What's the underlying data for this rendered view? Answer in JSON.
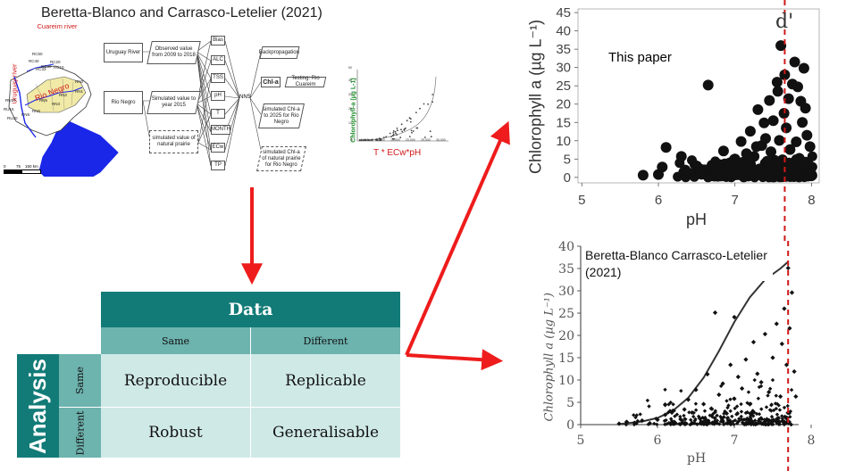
{
  "top_title": "Beretta-Blanco and Carrasco-Letelier (2021)",
  "map": {
    "cuareim_label": "Cuareim river",
    "uruguay_label": "Uruguay river",
    "rionegro_label": "Rio Negro",
    "stations": [
      "RC50",
      "RC40",
      "RC30",
      "RC20",
      "RC10",
      "RC33",
      "RN0",
      "RN1",
      "RN2",
      "RN3",
      "RN5",
      "RN6",
      "RN8",
      "RU10",
      "RU15",
      "RU20"
    ],
    "scale_labels": [
      "0",
      "75",
      "150 km"
    ]
  },
  "flow": {
    "uruguay_river": "Uruguay River",
    "rio_negro": "Rio Negro",
    "observed": "Observed value from 2009 to 2018",
    "simulated_2015": "Simulated value to year 2015",
    "simulated_prairie": "simulated value of natural prairie",
    "vars": [
      "Bias",
      "ALC",
      "TSS",
      "pH",
      "T",
      "MONTH",
      "ECw",
      "TP"
    ],
    "nns": "NNS",
    "backprop": "Backpropagation",
    "chla": "Chl-a",
    "testing": "Testing: Rio Cuareim",
    "sim_2025": "simulated Chl-a to 2025 for Rio Negro",
    "sim_prairie": "simulated Chl-a of natural prairie for Rio Negro"
  },
  "mini_plot": {
    "ylabel": "Chlorophyll-a (µg L-1)",
    "yticks": [
      "0",
      "10",
      "20",
      "30",
      "40",
      "50"
    ],
    "xticks": [
      "0",
      "5,000",
      "10,000",
      "15,000",
      "20,000",
      "25,000",
      "30,000"
    ],
    "formula": "T * ECw*pH"
  },
  "matrix": {
    "data_header": "Data",
    "analysis_label": "Analysis",
    "col_same": "Same",
    "col_different": "Different",
    "row_same": "Same",
    "row_different": "Different",
    "reproducible": "Reproducible",
    "replicable": "Replicable",
    "robust": "Robust",
    "generalisable": "Generalisable"
  },
  "plot_this": {
    "annotation": "This paper",
    "ylabel": "Chlorophyll a (µg L⁻¹)",
    "xlabel": "pH",
    "marker": "d'",
    "yticks": [
      "0",
      "5",
      "10",
      "15",
      "20",
      "25",
      "30",
      "35",
      "40",
      "45"
    ],
    "xticks": [
      "5",
      "6",
      "7",
      "8"
    ]
  },
  "plot_beretta": {
    "annotation": "Beretta-Blanco Carrasco-Letelier (2021)",
    "ylabel": "Chlorophyll a (µg L⁻¹)",
    "xlabel": "pH",
    "yticks": [
      "0",
      "5",
      "10",
      "15",
      "20",
      "25",
      "30",
      "35",
      "40"
    ],
    "xticks": [
      "5",
      "6",
      "7",
      "8"
    ]
  },
  "colors": {
    "arrow_red": "#ee1c1c",
    "dashed_red": "#d01818",
    "teal_dark": "#127b77",
    "teal_mid": "#6db3ae",
    "teal_light": "#cfe9e7",
    "map_blue": "#1a26e8",
    "map_yellow": "#f1eaa6"
  },
  "chart_data": [
    {
      "type": "scatter",
      "title": "This paper",
      "xlabel": "pH",
      "ylabel": "Chlorophyll a (µg L⁻¹)",
      "xlim": [
        4.95,
        8.1
      ],
      "ylim": [
        -1.5,
        46
      ],
      "vline_x": 7.65,
      "vline_label": "d'",
      "grid": false,
      "points": [
        [
          5.8,
          0.6
        ],
        [
          6.0,
          0.8
        ],
        [
          6.05,
          2.8
        ],
        [
          6.1,
          8.2
        ],
        [
          6.3,
          5.7
        ],
        [
          6.35,
          2.0
        ],
        [
          6.5,
          3.1
        ],
        [
          6.55,
          1.2
        ],
        [
          6.65,
          25.2
        ],
        [
          6.7,
          3.3
        ],
        [
          6.75,
          2.1
        ],
        [
          6.85,
          7.2
        ],
        [
          6.9,
          1.5
        ],
        [
          6.95,
          3.2
        ],
        [
          7.0,
          5.0
        ],
        [
          7.05,
          1.8
        ],
        [
          7.08,
          9.8
        ],
        [
          7.1,
          4.1
        ],
        [
          7.12,
          1.1
        ],
        [
          7.15,
          6.5
        ],
        [
          7.2,
          12.6
        ],
        [
          7.22,
          2.2
        ],
        [
          7.25,
          5.7
        ],
        [
          7.28,
          8.4
        ],
        [
          7.3,
          18.5
        ],
        [
          7.32,
          2.3
        ],
        [
          7.35,
          8.7
        ],
        [
          7.38,
          14.9
        ],
        [
          7.4,
          10.6
        ],
        [
          7.42,
          4.4
        ],
        [
          7.44,
          1.4
        ],
        [
          7.45,
          21.0
        ],
        [
          7.47,
          7.0
        ],
        [
          7.5,
          15.5
        ],
        [
          7.52,
          3.3
        ],
        [
          7.55,
          26.0
        ],
        [
          7.56,
          23.5
        ],
        [
          7.58,
          10.1
        ],
        [
          7.6,
          36.0
        ],
        [
          7.62,
          4.8
        ],
        [
          7.64,
          17.5
        ],
        [
          7.65,
          28.0
        ],
        [
          7.67,
          13.5
        ],
        [
          7.7,
          21.5
        ],
        [
          7.72,
          7.6
        ],
        [
          7.74,
          2.5
        ],
        [
          7.75,
          25.5
        ],
        [
          7.78,
          31.5
        ],
        [
          7.8,
          9.7
        ],
        [
          7.82,
          24.7
        ],
        [
          7.84,
          5.2
        ],
        [
          7.86,
          20.8
        ],
        [
          7.88,
          15.0
        ],
        [
          7.9,
          29.8
        ],
        [
          7.92,
          18.9
        ],
        [
          7.94,
          11.5
        ],
        [
          7.96,
          3.5
        ],
        [
          7.98,
          8.4
        ],
        [
          8.0,
          0.8
        ]
      ]
    },
    {
      "type": "scatter",
      "title": "Beretta-Blanco Carrasco-Letelier (2021)",
      "xlabel": "pH",
      "ylabel": "Chlorophyll a (µg L⁻¹)",
      "xlim": [
        5,
        8
      ],
      "ylim": [
        0,
        40
      ],
      "vline_x": 7.7,
      "grid": false,
      "curve": [
        [
          5.5,
          0.1
        ],
        [
          5.8,
          0.7
        ],
        [
          6.0,
          1.5
        ],
        [
          6.2,
          3.1
        ],
        [
          6.4,
          6.0
        ],
        [
          6.6,
          10.5
        ],
        [
          6.8,
          16.5
        ],
        [
          7.0,
          23.0
        ],
        [
          7.2,
          28.5
        ],
        [
          7.4,
          32.5
        ],
        [
          7.6,
          35.0
        ],
        [
          7.7,
          36.5
        ]
      ],
      "points": [
        [
          5.5,
          0.2
        ],
        [
          5.6,
          0.6
        ],
        [
          5.7,
          0.4
        ],
        [
          5.8,
          0.9
        ],
        [
          5.9,
          0.3
        ],
        [
          6.0,
          1.1
        ],
        [
          6.1,
          2.2
        ],
        [
          6.2,
          3.1
        ],
        [
          6.1,
          4.5
        ],
        [
          6.3,
          1.2
        ],
        [
          6.35,
          3.4
        ],
        [
          6.4,
          5.6
        ],
        [
          6.45,
          2.7
        ],
        [
          6.5,
          7.8
        ],
        [
          6.55,
          1.4
        ],
        [
          6.6,
          4.6
        ],
        [
          6.65,
          11.3
        ],
        [
          6.7,
          3.6
        ],
        [
          6.75,
          25.1
        ],
        [
          6.8,
          6.7
        ],
        [
          6.85,
          9.2
        ],
        [
          6.9,
          2.5
        ],
        [
          6.95,
          13.4
        ],
        [
          7.0,
          24.1
        ],
        [
          7.0,
          5.8
        ],
        [
          7.05,
          10.7
        ],
        [
          7.1,
          8.1
        ],
        [
          7.15,
          14.6
        ],
        [
          7.2,
          4.6
        ],
        [
          7.25,
          18.5
        ],
        [
          7.3,
          11.4
        ],
        [
          7.35,
          9.5
        ],
        [
          7.4,
          20.3
        ],
        [
          7.45,
          7.3
        ],
        [
          7.5,
          15.0
        ],
        [
          7.55,
          22.6
        ],
        [
          7.6,
          6.3
        ],
        [
          7.62,
          18.1
        ],
        [
          7.65,
          26.0
        ],
        [
          7.68,
          13.4
        ],
        [
          7.7,
          35.1
        ],
        [
          7.72,
          21.6
        ],
        [
          7.75,
          29.6
        ],
        [
          7.78,
          11.9
        ],
        [
          7.8,
          6.3
        ]
      ]
    }
  ]
}
